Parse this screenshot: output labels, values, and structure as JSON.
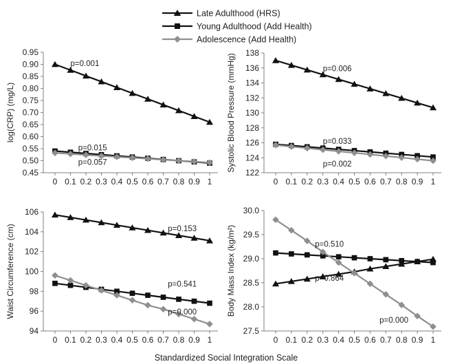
{
  "colors": {
    "late": "#111111",
    "young": "#111111",
    "adol": "#8f8f8f",
    "axis": "#7f7f7f"
  },
  "legend": [
    {
      "label": "Late Adulthood  (HRS)",
      "marker": "triangle",
      "color_key": "late"
    },
    {
      "label": "Young Adulthood  (Add Health)",
      "marker": "square",
      "color_key": "young"
    },
    {
      "label": "Adolescence (Add Health)",
      "marker": "diamond",
      "color_key": "adol"
    }
  ],
  "x_axis_title": "Standardized  Social Integration Scale",
  "chart_data": [
    {
      "type": "line",
      "ylabel": "log(CRP)  (mg/L)",
      "ylim": [
        0.45,
        0.95
      ],
      "ytick_labels": [
        "0.45",
        "0.50",
        "0.55",
        "0.60",
        "0.65",
        "0.70",
        "0.75",
        "0.80",
        "0.85",
        "0.90",
        "0.95"
      ],
      "categories": [
        "0",
        "0.1",
        "0.2",
        "0.3",
        "0.4",
        "0.5",
        "0.6",
        "0.7",
        "0.8",
        "0.9",
        "1"
      ],
      "series": [
        {
          "name": "Late Adulthood  (HRS)",
          "marker": "triangle",
          "color_key": "late",
          "values": [
            0.9,
            0.876,
            0.852,
            0.828,
            0.804,
            0.78,
            0.756,
            0.732,
            0.708,
            0.684,
            0.66
          ]
        },
        {
          "name": "Young Adulthood  (Add Health)",
          "marker": "square",
          "color_key": "young",
          "values": [
            0.54,
            0.535,
            0.53,
            0.525,
            0.52,
            0.515,
            0.51,
            0.505,
            0.5,
            0.495,
            0.49
          ]
        },
        {
          "name": "Adolescence (Add Health)",
          "marker": "diamond",
          "color_key": "adol",
          "values": [
            0.532,
            0.528,
            0.524,
            0.52,
            0.516,
            0.512,
            0.508,
            0.504,
            0.5,
            0.496,
            0.492
          ]
        }
      ],
      "annotations": [
        {
          "text": "p=0.001",
          "x": 0.1,
          "y": 0.905
        },
        {
          "text": "p=0.015",
          "x": 0.15,
          "y": 0.555
        },
        {
          "text": "p=0.057",
          "x": 0.15,
          "y": 0.495
        }
      ]
    },
    {
      "type": "line",
      "ylabel": "Systolic Blood Pressure  (mmHg)",
      "ylim": [
        122,
        138
      ],
      "ytick_labels": [
        "122",
        "124",
        "126",
        "128",
        "130",
        "132",
        "134",
        "136",
        "138"
      ],
      "categories": [
        "0",
        "0.1",
        "0.2",
        "0.3",
        "0.4",
        "0.5",
        "0.6",
        "0.7",
        "0.8",
        "0.9",
        "1"
      ],
      "series": [
        {
          "name": "Late Adulthood  (HRS)",
          "marker": "triangle",
          "color_key": "late",
          "values": [
            137.0,
            136.37,
            135.74,
            135.11,
            134.48,
            133.85,
            133.22,
            132.59,
            131.96,
            131.33,
            130.7
          ]
        },
        {
          "name": "Young Adulthood  (Add Health)",
          "marker": "square",
          "color_key": "young",
          "values": [
            125.8,
            125.63,
            125.46,
            125.29,
            125.12,
            124.95,
            124.78,
            124.61,
            124.44,
            124.27,
            124.1
          ]
        },
        {
          "name": "Adolescence (Add Health)",
          "marker": "diamond",
          "color_key": "adol",
          "values": [
            125.7,
            125.49,
            125.28,
            125.07,
            124.86,
            124.65,
            124.44,
            124.23,
            124.02,
            123.81,
            123.6
          ]
        }
      ],
      "annotations": [
        {
          "text": "p=0.006",
          "x": 0.3,
          "y": 135.95
        },
        {
          "text": "p=0.033",
          "x": 0.3,
          "y": 126.25
        },
        {
          "text": "p=0.002",
          "x": 0.3,
          "y": 123.2
        }
      ]
    },
    {
      "type": "line",
      "ylabel": "Waist Circumference (cm)",
      "ylim": [
        94,
        106
      ],
      "ytick_labels": [
        "94",
        "96",
        "98",
        "100",
        "102",
        "104",
        "106"
      ],
      "categories": [
        "0",
        "0.1",
        "0.2",
        "0.3",
        "0.4",
        "0.5",
        "0.6",
        "0.7",
        "0.8",
        "0.9",
        "1"
      ],
      "series": [
        {
          "name": "Late Adulthood  (HRS)",
          "marker": "triangle",
          "color_key": "late",
          "values": [
            105.7,
            105.45,
            105.19,
            104.93,
            104.67,
            104.41,
            104.15,
            103.89,
            103.63,
            103.37,
            103.1
          ]
        },
        {
          "name": "Young Adulthood  (Add Health)",
          "marker": "square",
          "color_key": "young",
          "values": [
            98.8,
            98.6,
            98.4,
            98.2,
            98.0,
            97.8,
            97.6,
            97.4,
            97.2,
            97.0,
            96.8
          ]
        },
        {
          "name": "Adolescence (Add Health)",
          "marker": "diamond",
          "color_key": "adol",
          "values": [
            99.6,
            99.1,
            98.6,
            98.1,
            97.6,
            97.1,
            96.6,
            96.2,
            95.7,
            95.2,
            94.7
          ]
        }
      ],
      "annotations": [
        {
          "text": "p=0.153",
          "x": 0.73,
          "y": 104.35
        },
        {
          "text": "p=0.541",
          "x": 0.73,
          "y": 98.75
        },
        {
          "text": "p=0.000",
          "x": 0.73,
          "y": 95.95
        }
      ]
    },
    {
      "type": "line",
      "ylabel": "Body Mass Index (kg/m²)",
      "ylim": [
        27.5,
        30.0
      ],
      "ytick_labels": [
        "27.5",
        "28.0",
        "28.5",
        "29.0",
        "29.5",
        "30.0"
      ],
      "categories": [
        "0",
        "0.1",
        "0.2",
        "0.3",
        "0.4",
        "0.5",
        "0.6",
        "0.7",
        "0.8",
        "0.9",
        "1"
      ],
      "series": [
        {
          "name": "Late Adulthood  (HRS)",
          "marker": "triangle",
          "color_key": "late",
          "values": [
            28.48,
            28.53,
            28.58,
            28.63,
            28.68,
            28.73,
            28.79,
            28.84,
            28.89,
            28.94,
            28.99
          ]
        },
        {
          "name": "Young Adulthood  (Add Health)",
          "marker": "square",
          "color_key": "young",
          "values": [
            29.12,
            29.1,
            29.08,
            29.06,
            29.04,
            29.02,
            29.0,
            28.98,
            28.96,
            28.94,
            28.92
          ]
        },
        {
          "name": "Adolescence (Add Health)",
          "marker": "diamond",
          "color_key": "adol",
          "values": [
            29.81,
            29.59,
            29.37,
            29.14,
            28.92,
            28.7,
            28.48,
            28.26,
            28.04,
            27.81,
            27.59
          ]
        }
      ],
      "annotations": [
        {
          "text": "p=0.510",
          "x": 0.25,
          "y": 29.31
        },
        {
          "text": "p=0.864",
          "x": 0.25,
          "y": 28.6
        },
        {
          "text": "p=0.000",
          "x": 0.66,
          "y": 27.73
        }
      ]
    }
  ]
}
